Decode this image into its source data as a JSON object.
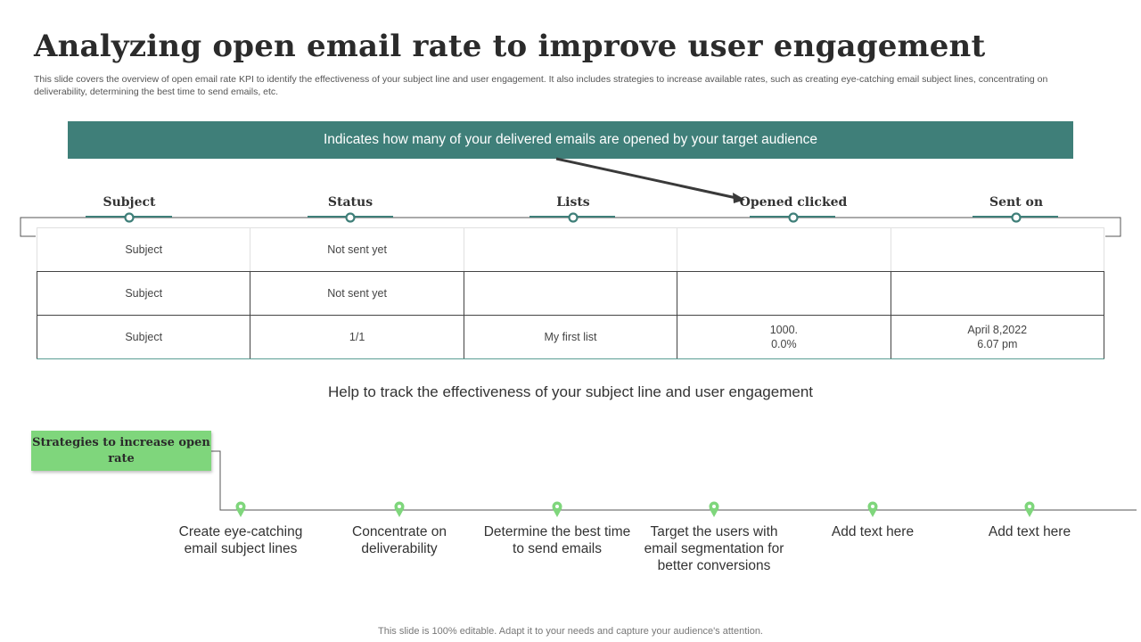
{
  "slide": {
    "title": "Analyzing open email rate to improve user engagement",
    "description": "This slide covers the overview of open email rate KPI to identify the effectiveness of your subject line and user engagement. It also includes strategies to increase available rates, such as creating eye-catching email subject lines, concentrating on deliverability, determining the best time to send emails, etc.",
    "banner": "Indicates how many of your delivered emails are opened by your target audience",
    "help_text": "Help to track the effectiveness of your subject line and user engagement",
    "footer": "This slide is 100% editable. Adapt it to your needs and capture your audience's attention."
  },
  "table": {
    "headers": [
      "Subject",
      "Status",
      "Lists",
      "Opened clicked",
      "Sent on"
    ],
    "rows": [
      [
        "Subject",
        "Not sent yet",
        "",
        "",
        ""
      ],
      [
        "Subject",
        "Not sent yet",
        "",
        "",
        ""
      ],
      [
        "Subject",
        "1/1",
        "My first list",
        "1000.\n0.0%",
        "April 8,2022\n6.07 pm"
      ]
    ]
  },
  "strategies": {
    "label": "Strategies to increase open rate",
    "items": [
      "Create eye-catching email subject lines",
      "Concentrate on deliverability",
      "Determine the best time to send emails",
      "Target the users with email segmentation for better conversions",
      "Add text here",
      "Add text here"
    ]
  },
  "colors": {
    "banner": "#3f7f79",
    "teal": "#3f7f79",
    "strategy_green": "#7fd67c"
  }
}
